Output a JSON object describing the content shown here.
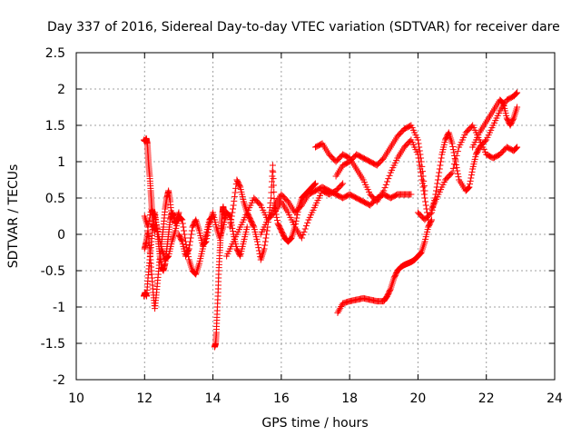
{
  "chart_data": {
    "type": "scatter",
    "title": "Day 337 of 2016, Sidereal Day-to-day VTEC variation (SDTVAR) for receiver dare",
    "xlabel": "GPS time / hours",
    "ylabel": "SDTVAR / TECUs",
    "xlim": [
      10,
      24
    ],
    "ylim": [
      -2,
      2.5
    ],
    "xticks": [
      "10",
      "12",
      "14",
      "16",
      "18",
      "20",
      "22",
      "24"
    ],
    "yticks": [
      "-2",
      "-1.5",
      "-1",
      "-0.5",
      "0",
      "0.5",
      "1",
      "1.5",
      "2",
      "2.5"
    ],
    "xtick_values": [
      10,
      12,
      14,
      16,
      18,
      20,
      22,
      24
    ],
    "ytick_values": [
      -2,
      -1.5,
      -1,
      -0.5,
      0,
      0.5,
      1,
      1.5,
      2,
      2.5
    ],
    "grid": true,
    "marker": "+",
    "series_color": "#ff0000",
    "series": [
      {
        "name": "s1",
        "x": [
          11.98,
          12.02,
          12.05,
          12.08,
          12.1,
          12.12,
          12.15,
          12.18,
          12.2,
          12.22,
          12.25,
          12.28,
          12.3
        ],
        "y": [
          1.3,
          1.28,
          1.32,
          1.25,
          1.1,
          0.95,
          0.8,
          0.6,
          0.45,
          0.3,
          0.15,
          0.1,
          0.05
        ]
      },
      {
        "name": "s2",
        "x": [
          11.98,
          12.02,
          12.06,
          12.1,
          12.15,
          12.2,
          12.25,
          12.3,
          12.35,
          12.4,
          12.45,
          12.5,
          12.55,
          12.6,
          12.65,
          12.7,
          12.75,
          12.8,
          12.85,
          12.9,
          12.95,
          13.0
        ],
        "y": [
          -0.85,
          -0.8,
          -0.85,
          -0.6,
          -0.35,
          -0.1,
          0.15,
          0.3,
          0.1,
          -0.1,
          -0.3,
          -0.45,
          -0.5,
          -0.4,
          -0.2,
          0.0,
          0.2,
          0.3,
          0.25,
          0.15,
          0.2,
          0.3
        ]
      },
      {
        "name": "s3",
        "x": [
          12.0,
          12.05,
          12.1,
          12.15,
          12.2,
          12.25,
          12.3,
          12.35,
          12.4,
          12.45,
          12.5,
          12.55,
          12.6,
          12.65,
          12.7,
          12.75,
          12.8
        ],
        "y": [
          -0.2,
          -0.1,
          0.05,
          -0.2,
          -0.5,
          -0.8,
          -1.02,
          -0.8,
          -0.55,
          -0.3,
          -0.1,
          0.1,
          0.35,
          0.5,
          0.6,
          0.45,
          0.2
        ]
      },
      {
        "name": "s4",
        "x": [
          12.0,
          12.1,
          12.2,
          12.3,
          12.4,
          12.5,
          12.6,
          12.7,
          12.8,
          12.9,
          13.0,
          13.1,
          13.2,
          13.3,
          13.4,
          13.5,
          13.6,
          13.7,
          13.8,
          13.9,
          14.0
        ],
        "y": [
          0.25,
          0.1,
          0.35,
          0.25,
          0.0,
          -0.2,
          -0.35,
          -0.3,
          -0.1,
          0.05,
          0.25,
          0.2,
          -0.1,
          -0.35,
          -0.5,
          -0.55,
          -0.4,
          -0.2,
          0.0,
          0.2,
          0.25
        ]
      },
      {
        "name": "s5",
        "x": [
          13.0,
          13.1,
          13.2,
          13.3,
          13.4,
          13.5,
          13.6,
          13.7,
          13.8,
          13.9,
          14.0,
          14.1,
          14.2,
          14.3,
          14.4,
          14.5,
          14.6,
          14.7,
          14.8,
          14.9,
          15.0
        ],
        "y": [
          0.0,
          -0.1,
          -0.3,
          -0.2,
          0.1,
          0.2,
          0.05,
          -0.15,
          -0.1,
          0.15,
          0.3,
          0.1,
          -0.05,
          0.1,
          0.3,
          0.25,
          0.0,
          -0.2,
          -0.3,
          -0.1,
          0.1
        ]
      },
      {
        "name": "s6",
        "x": [
          14.05,
          14.08,
          14.1,
          14.12,
          14.15,
          14.17,
          14.2,
          14.22,
          14.25,
          14.28,
          14.3,
          14.32,
          14.35
        ],
        "y": [
          -1.55,
          -1.5,
          -1.35,
          -1.1,
          -0.8,
          -0.5,
          -0.25,
          -0.05,
          0.15,
          0.3,
          0.38,
          0.3,
          0.2
        ]
      },
      {
        "name": "s7",
        "x": [
          14.5,
          14.6,
          14.7,
          14.8,
          14.9,
          15.0,
          15.1,
          15.2,
          15.3,
          15.4,
          15.5,
          15.6,
          15.7,
          15.75,
          15.8,
          15.9,
          16.0,
          16.1,
          16.2,
          16.3,
          16.4,
          16.5,
          16.6,
          16.7,
          16.8,
          16.9,
          17.0
        ],
        "y": [
          0.1,
          0.4,
          0.75,
          0.65,
          0.45,
          0.3,
          0.2,
          0.1,
          -0.1,
          -0.35,
          -0.2,
          0.1,
          0.5,
          0.95,
          0.4,
          0.15,
          0.05,
          -0.05,
          -0.1,
          -0.05,
          0.1,
          0.35,
          0.5,
          0.55,
          0.6,
          0.65,
          0.7
        ]
      },
      {
        "name": "s8",
        "x": [
          14.4,
          14.6,
          14.8,
          15.0,
          15.2,
          15.4,
          15.6,
          15.8,
          16.0,
          16.2,
          16.4,
          16.6,
          16.8,
          17.0,
          17.2,
          17.4,
          17.6,
          17.8
        ],
        "y": [
          -0.3,
          -0.1,
          0.1,
          0.3,
          0.5,
          0.4,
          0.2,
          0.3,
          0.45,
          0.3,
          0.1,
          -0.05,
          0.2,
          0.4,
          0.6,
          0.55,
          0.6,
          0.7
        ]
      },
      {
        "name": "s9",
        "x": [
          15.4,
          15.6,
          15.8,
          16.0,
          16.2,
          16.4,
          16.6,
          16.8,
          17.0,
          17.2,
          17.4,
          17.6,
          17.8,
          18.0,
          18.2,
          18.4,
          18.6,
          18.8,
          19.0,
          19.2,
          19.4,
          19.6,
          19.8
        ],
        "y": [
          0.0,
          0.2,
          0.4,
          0.55,
          0.45,
          0.3,
          0.4,
          0.55,
          0.6,
          0.65,
          0.6,
          0.55,
          0.5,
          0.55,
          0.5,
          0.45,
          0.4,
          0.5,
          0.55,
          0.5,
          0.55,
          0.55,
          0.55
        ]
      },
      {
        "name": "s10",
        "x": [
          17.0,
          17.2,
          17.4,
          17.6,
          17.8,
          18.0,
          18.2,
          18.4,
          18.6,
          18.8,
          19.0,
          19.2,
          19.4,
          19.6,
          19.8,
          20.0,
          20.1,
          20.2,
          20.3
        ],
        "y": [
          1.2,
          1.25,
          1.1,
          1.0,
          1.1,
          1.05,
          0.9,
          0.75,
          0.55,
          0.45,
          0.6,
          0.85,
          1.05,
          1.2,
          1.3,
          1.1,
          0.8,
          0.5,
          0.2
        ]
      },
      {
        "name": "s11",
        "x": [
          17.6,
          17.8,
          18.0,
          18.2,
          18.4,
          18.6,
          18.8,
          19.0,
          19.2,
          19.4,
          19.6,
          19.8,
          20.0,
          20.1,
          20.2
        ],
        "y": [
          0.8,
          0.95,
          1.0,
          1.1,
          1.05,
          1.0,
          0.95,
          1.05,
          1.2,
          1.35,
          1.45,
          1.5,
          1.3,
          1.0,
          0.6
        ]
      },
      {
        "name": "s12",
        "x": [
          17.65,
          17.8,
          18.0,
          18.2,
          18.4,
          18.6,
          18.8,
          19.0,
          19.1,
          19.2,
          19.3,
          19.4,
          19.5,
          19.6,
          19.7,
          19.8,
          19.9,
          20.0,
          20.1,
          20.2,
          20.3,
          20.4
        ],
        "y": [
          -1.08,
          -0.95,
          -0.92,
          -0.9,
          -0.88,
          -0.9,
          -0.92,
          -0.92,
          -0.85,
          -0.75,
          -0.6,
          -0.5,
          -0.45,
          -0.42,
          -0.4,
          -0.38,
          -0.35,
          -0.3,
          -0.25,
          -0.1,
          0.1,
          0.2
        ]
      },
      {
        "name": "s13",
        "x": [
          20.0,
          20.2,
          20.4,
          20.5,
          20.6,
          20.7,
          20.8,
          20.9,
          21.0,
          21.1,
          21.2,
          21.4,
          21.5,
          21.6,
          21.7,
          21.8,
          22.0,
          22.2,
          22.4,
          22.6,
          22.8,
          22.9
        ],
        "y": [
          0.3,
          0.2,
          0.3,
          0.5,
          0.8,
          1.1,
          1.3,
          1.4,
          1.25,
          1.0,
          0.75,
          0.6,
          0.65,
          0.9,
          1.1,
          1.2,
          1.3,
          1.5,
          1.7,
          1.85,
          1.9,
          1.95
        ]
      },
      {
        "name": "s14",
        "x": [
          20.4,
          20.6,
          20.8,
          21.0,
          21.2,
          21.4,
          21.6,
          21.8,
          22.0,
          22.2,
          22.4,
          22.6,
          22.8,
          22.9
        ],
        "y": [
          0.35,
          0.55,
          0.75,
          0.85,
          1.2,
          1.4,
          1.5,
          1.3,
          1.1,
          1.05,
          1.1,
          1.2,
          1.15,
          1.2
        ]
      },
      {
        "name": "s15",
        "x": [
          21.6,
          21.8,
          22.0,
          22.2,
          22.4,
          22.5,
          22.6,
          22.7,
          22.8,
          22.9
        ],
        "y": [
          1.2,
          1.4,
          1.55,
          1.7,
          1.85,
          1.8,
          1.6,
          1.5,
          1.6,
          1.75
        ]
      }
    ]
  }
}
